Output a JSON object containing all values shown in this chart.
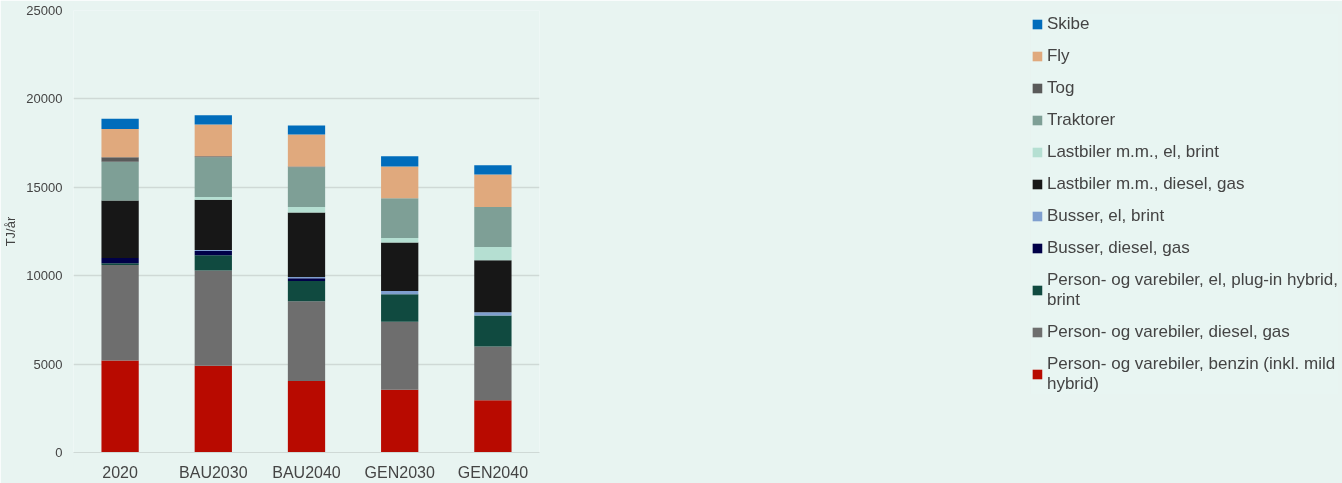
{
  "chart_data": {
    "type": "bar",
    "stacked": true,
    "ylabel": "TJ/år",
    "categories": [
      "2020",
      "BAU2030",
      "BAU2040",
      "GEN2030",
      "GEN2040"
    ],
    "ylim": [
      0,
      25000
    ],
    "yticks": [
      0,
      5000,
      10000,
      15000,
      20000,
      25000
    ],
    "grid": "y",
    "legend": "right",
    "series": [
      {
        "name": "Person- og varebiler, benzin (inkl. mild hybrid)",
        "color": "#b80a00",
        "values": [
          5200,
          4900,
          4050,
          3550,
          2950
        ]
      },
      {
        "name": "Person- og varebiler, diesel, gas",
        "color": "#6e6e6e",
        "values": [
          5400,
          5400,
          4500,
          3850,
          3050
        ]
      },
      {
        "name": "Person- og varebiler, el, plug-in hybrid, brint",
        "color": "#104a40",
        "values": [
          100,
          850,
          1150,
          1550,
          1750
        ]
      },
      {
        "name": "Busser, diesel, gas",
        "color": "#000048",
        "values": [
          300,
          250,
          150,
          0,
          0
        ]
      },
      {
        "name": "Busser, el, brint",
        "color": "#7f9fcf",
        "values": [
          0,
          50,
          80,
          180,
          180
        ]
      },
      {
        "name": "Lastbiler m.m., diesel, gas",
        "color": "#171717",
        "values": [
          3250,
          2850,
          3650,
          2750,
          2950
        ]
      },
      {
        "name": "Lastbiler m.m., el, brint",
        "color": "#b5dfd2",
        "values": [
          null,
          150,
          300,
          250,
          750
        ]
      },
      {
        "name": "Traktorer",
        "color": "#7e9f96",
        "values": [
          2200,
          2250,
          2250,
          2250,
          2250
        ]
      },
      {
        "name": "Tog",
        "color": "#5a5a5a",
        "values": [
          250,
          50,
          50,
          0,
          0
        ]
      },
      {
        "name": "Fly",
        "color": "#e0a97d",
        "values": [
          1600,
          1800,
          1800,
          1800,
          1850
        ]
      },
      {
        "name": "Skibe",
        "color": "#006cbb",
        "values": [
          580,
          520,
          520,
          580,
          520
        ]
      }
    ]
  }
}
